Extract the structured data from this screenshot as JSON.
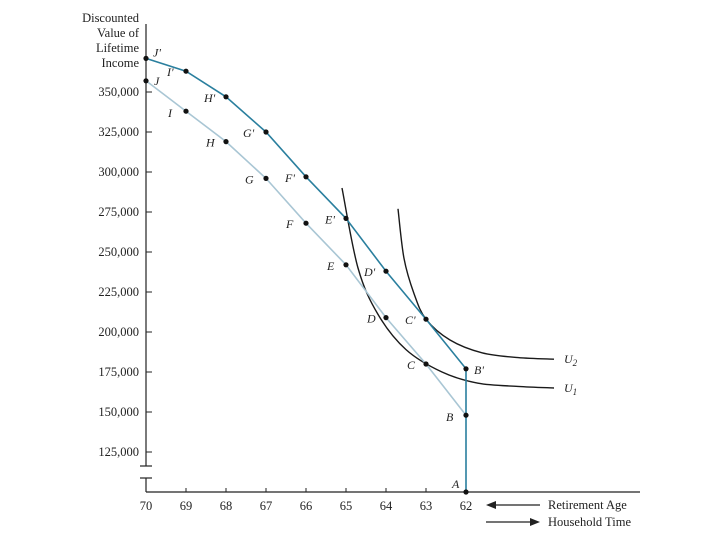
{
  "chart_data": {
    "type": "line",
    "title": "",
    "ylabel_lines": [
      "Discounted",
      "Value of",
      "Lifetime",
      "Income"
    ],
    "xlabel": "Retirement Age",
    "xlabel_secondary": "Household Time",
    "x_ticks": [
      70,
      69,
      68,
      67,
      66,
      65,
      64,
      63,
      62
    ],
    "y_ticks": [
      "350,000",
      "325,000",
      "300,000",
      "275,000",
      "250,000",
      "225,000",
      "200,000",
      "175,000",
      "150,000",
      "125,000"
    ],
    "xlim": [
      70,
      62
    ],
    "ylim": [
      100000,
      380000
    ],
    "series": [
      {
        "name": "",
        "color": "#a9c6d4",
        "points": [
          {
            "label": "J",
            "x": 70,
            "y": 357000
          },
          {
            "label": "I",
            "x": 69,
            "y": 338000
          },
          {
            "label": "H",
            "x": 68,
            "y": 319000
          },
          {
            "label": "G",
            "x": 67,
            "y": 296000
          },
          {
            "label": "F",
            "x": 66,
            "y": 268000
          },
          {
            "label": "E",
            "x": 65,
            "y": 242000
          },
          {
            "label": "D",
            "x": 64,
            "y": 209000
          },
          {
            "label": "C",
            "x": 63,
            "y": 180000
          },
          {
            "label": "B",
            "x": 62,
            "y": 148000
          }
        ]
      },
      {
        "name": "",
        "color": "#2a7f9e",
        "points": [
          {
            "label": "J'",
            "x": 70,
            "y": 371000
          },
          {
            "label": "I'",
            "x": 69,
            "y": 363000
          },
          {
            "label": "H'",
            "x": 68,
            "y": 347000
          },
          {
            "label": "G'",
            "x": 67,
            "y": 325000
          },
          {
            "label": "F'",
            "x": 66,
            "y": 297000
          },
          {
            "label": "E'",
            "x": 65,
            "y": 271000
          },
          {
            "label": "D'",
            "x": 64,
            "y": 238000
          },
          {
            "label": "C'",
            "x": 63,
            "y": 208000
          },
          {
            "label": "B'",
            "x": 62,
            "y": 177000
          }
        ]
      }
    ],
    "origin_point": {
      "label": "A",
      "x": 62,
      "y": 100000
    },
    "indifference_curves": [
      {
        "label": "U1",
        "points": [
          [
            65.1,
            290000
          ],
          [
            64.7,
            240000
          ],
          [
            64.2,
            211000
          ],
          [
            63.5,
            189000
          ],
          [
            62.6,
            175000
          ],
          [
            61.7,
            168000
          ],
          [
            60.7,
            166000
          ],
          [
            59.8,
            165000
          ]
        ]
      },
      {
        "label": "U2",
        "points": [
          [
            63.7,
            277000
          ],
          [
            63.55,
            246000
          ],
          [
            63.3,
            224000
          ],
          [
            63.0,
            208000
          ],
          [
            62.4,
            195000
          ],
          [
            61.6,
            187000
          ],
          [
            60.7,
            184000
          ],
          [
            59.8,
            183000
          ]
        ]
      }
    ],
    "grid": false,
    "legend": "none"
  }
}
